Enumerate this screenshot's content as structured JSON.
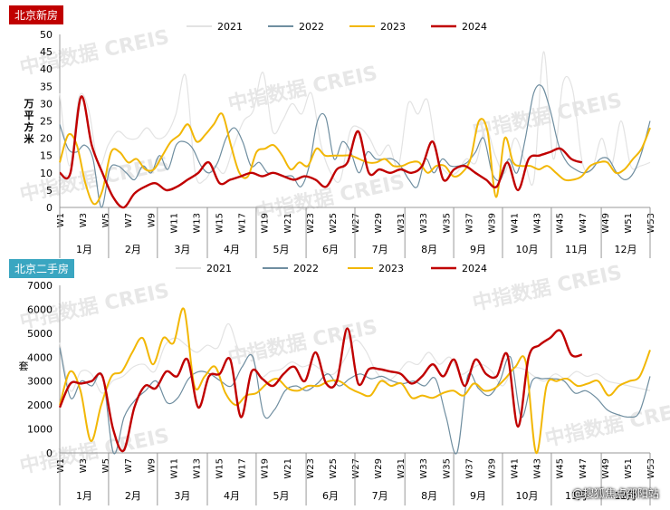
{
  "chart_data": [
    {
      "type": "line",
      "title": "北京新房",
      "ylabel": "万平方米",
      "ylim": [
        0,
        50
      ],
      "yticks": [
        0,
        5,
        10,
        15,
        20,
        25,
        30,
        35,
        40,
        45,
        50
      ],
      "week_labels": [
        "W1",
        "W3",
        "W5",
        "W7",
        "W9",
        "W11",
        "W13",
        "W15",
        "W17",
        "W19",
        "W21",
        "W23",
        "W25",
        "W27",
        "W29",
        "W31",
        "W33",
        "W35",
        "W37",
        "W39",
        "W41",
        "W43",
        "W45",
        "W47",
        "W49",
        "W51",
        "W53"
      ],
      "months": [
        "1月",
        "2月",
        "3月",
        "4月",
        "5月",
        "6月",
        "7月",
        "8月",
        "9月",
        "10月",
        "11月",
        "12月"
      ],
      "series": [
        {
          "name": "2021",
          "color": "#e3e3e3",
          "values": [
            33,
            12,
            32,
            28,
            12,
            18,
            22,
            20,
            20,
            23,
            20,
            21,
            27,
            38,
            10,
            8,
            12,
            10,
            18,
            25,
            28,
            39,
            22,
            25,
            30,
            27,
            33,
            18,
            10,
            8,
            22,
            23,
            20,
            15,
            18,
            12,
            30,
            27,
            31,
            15,
            10,
            10,
            14,
            13,
            23,
            15,
            10,
            20,
            14,
            8,
            45,
            14,
            36,
            34,
            13,
            11,
            20,
            12,
            25,
            12,
            12,
            13
          ]
        },
        {
          "name": "2022",
          "color": "#6f8ea0",
          "values": [
            24,
            17,
            16,
            18,
            14,
            0,
            11,
            12,
            10,
            8,
            12,
            10,
            15,
            11,
            18,
            19,
            17,
            12,
            10,
            13,
            20,
            23,
            19,
            12,
            13,
            10,
            10,
            9,
            9,
            6,
            12,
            25,
            26,
            14,
            19,
            16,
            10,
            16,
            14,
            14,
            14,
            12,
            8,
            6,
            14,
            10,
            14,
            12,
            12,
            13,
            16,
            20,
            10,
            8,
            14,
            10,
            20,
            33,
            35,
            28,
            18,
            13,
            11,
            10,
            11,
            14,
            14,
            10,
            8,
            10,
            16,
            25
          ]
        },
        {
          "name": "2023",
          "color": "#f2b705",
          "values": [
            13,
            21,
            18,
            7,
            1,
            5,
            16,
            16,
            13,
            14,
            11,
            11,
            15,
            19,
            21,
            24,
            19,
            21,
            24,
            27,
            18,
            10,
            9,
            16,
            17,
            18,
            15,
            11,
            13,
            12,
            17,
            15,
            15,
            15,
            15,
            14,
            13,
            13,
            14,
            12,
            12,
            13,
            13,
            10,
            12,
            12,
            9,
            10,
            14,
            25,
            22,
            3,
            20,
            13,
            12,
            12,
            11,
            12,
            10,
            8,
            8,
            9,
            12,
            13,
            13,
            10,
            11,
            14,
            17,
            23
          ]
        },
        {
          "name": "2024",
          "color": "#c00000",
          "values": [
            10,
            10,
            32,
            18,
            10,
            3,
            0,
            4,
            6,
            7,
            5,
            6,
            8,
            10,
            13,
            7,
            8,
            9,
            10,
            9,
            10,
            9,
            8,
            9,
            8,
            6,
            11,
            13,
            22,
            10,
            11,
            10,
            11,
            10,
            12,
            19,
            8,
            11,
            12,
            10,
            8,
            6,
            13,
            5,
            14,
            15,
            16,
            17,
            14,
            13
          ]
        }
      ]
    },
    {
      "type": "line",
      "title": "北京二手房",
      "ylabel": "套",
      "ylim": [
        0,
        7000
      ],
      "yticks": [
        0,
        1000,
        2000,
        3000,
        4000,
        5000,
        6000,
        7000
      ],
      "week_labels": [
        "W1",
        "W3",
        "W5",
        "W7",
        "W9",
        "W11",
        "W13",
        "W15",
        "W17",
        "W19",
        "W21",
        "W23",
        "W25",
        "W27",
        "W29",
        "W31",
        "W33",
        "W35",
        "W37",
        "W39",
        "W41",
        "W43",
        "W45",
        "W47",
        "W49",
        "W51",
        "W53"
      ],
      "months": [
        "1月",
        "2月",
        "3月",
        "4月",
        "5月",
        "6月",
        "7月",
        "8月",
        "9月",
        "10月",
        "11月",
        "12月"
      ],
      "series": [
        {
          "name": "2021",
          "color": "#e3e3e3",
          "values": [
            4600,
            2600,
            3400,
            3300,
            2500,
            3000,
            3200,
            3600,
            3700,
            3400,
            4500,
            4800,
            4500,
            4200,
            4500,
            4400,
            5400,
            4300,
            4200,
            3200,
            3400,
            3500,
            3800,
            3600,
            3700,
            3400,
            3300,
            3900,
            4700,
            4300,
            3400,
            3000,
            3300,
            3800,
            3700,
            4200,
            3700,
            4000,
            3300,
            3500,
            3700,
            3400,
            2800,
            3500,
            3500,
            3200,
            3000,
            3300,
            3100,
            3400,
            3200,
            3300,
            3000,
            2900,
            2800,
            2700,
            2600
          ]
        },
        {
          "name": "2022",
          "color": "#6f8ea0",
          "values": [
            4400,
            2300,
            3000,
            2800,
            3200,
            0,
            1500,
            2200,
            2600,
            3000,
            2100,
            2300,
            3100,
            3400,
            3300,
            3000,
            2800,
            3600,
            4000,
            1600,
            1800,
            2600,
            2800,
            2600,
            2900,
            3300,
            2800,
            3100,
            3300,
            3100,
            3200,
            3000,
            2900,
            3000,
            2800,
            3100,
            1500,
            0,
            3200,
            2700,
            2400,
            3000,
            4000,
            1500,
            3000,
            3100,
            3100,
            3000,
            2500,
            2600,
            2300,
            1800,
            1600,
            1500,
            1700,
            3200
          ]
        },
        {
          "name": "2023",
          "color": "#f2b705",
          "values": [
            2000,
            3400,
            2600,
            500,
            2000,
            3200,
            3400,
            4200,
            4800,
            3700,
            4800,
            4600,
            6000,
            2800,
            3200,
            3600,
            2500,
            2000,
            2400,
            2500,
            2900,
            3100,
            2700,
            2600,
            2800,
            2800,
            3000,
            3000,
            2700,
            2500,
            2400,
            3000,
            2800,
            2900,
            2300,
            2400,
            2300,
            2500,
            2600,
            2400,
            2900,
            2600,
            2700,
            3100,
            3600,
            3800,
            0,
            2800,
            3000,
            3100,
            2800,
            2900,
            3000,
            2400,
            2800,
            3000,
            3200,
            4300
          ]
        },
        {
          "name": "2024",
          "color": "#c00000",
          "values": [
            1900,
            2900,
            2900,
            3000,
            3200,
            1000,
            100,
            1900,
            2800,
            2700,
            3400,
            3200,
            3900,
            1900,
            3200,
            3300,
            3900,
            1500,
            3400,
            3100,
            2800,
            3300,
            3600,
            3000,
            4200,
            2900,
            3000,
            5200,
            2900,
            3500,
            3500,
            3400,
            3300,
            2900,
            3200,
            3700,
            3200,
            3900,
            2800,
            3900,
            3300,
            3200,
            4100,
            1100,
            4000,
            4500,
            4800,
            5100,
            4100,
            4100
          ]
        }
      ]
    }
  ],
  "watermark": "中指数据 CREIS",
  "source_label": "@搜狐焦点邵阳站"
}
